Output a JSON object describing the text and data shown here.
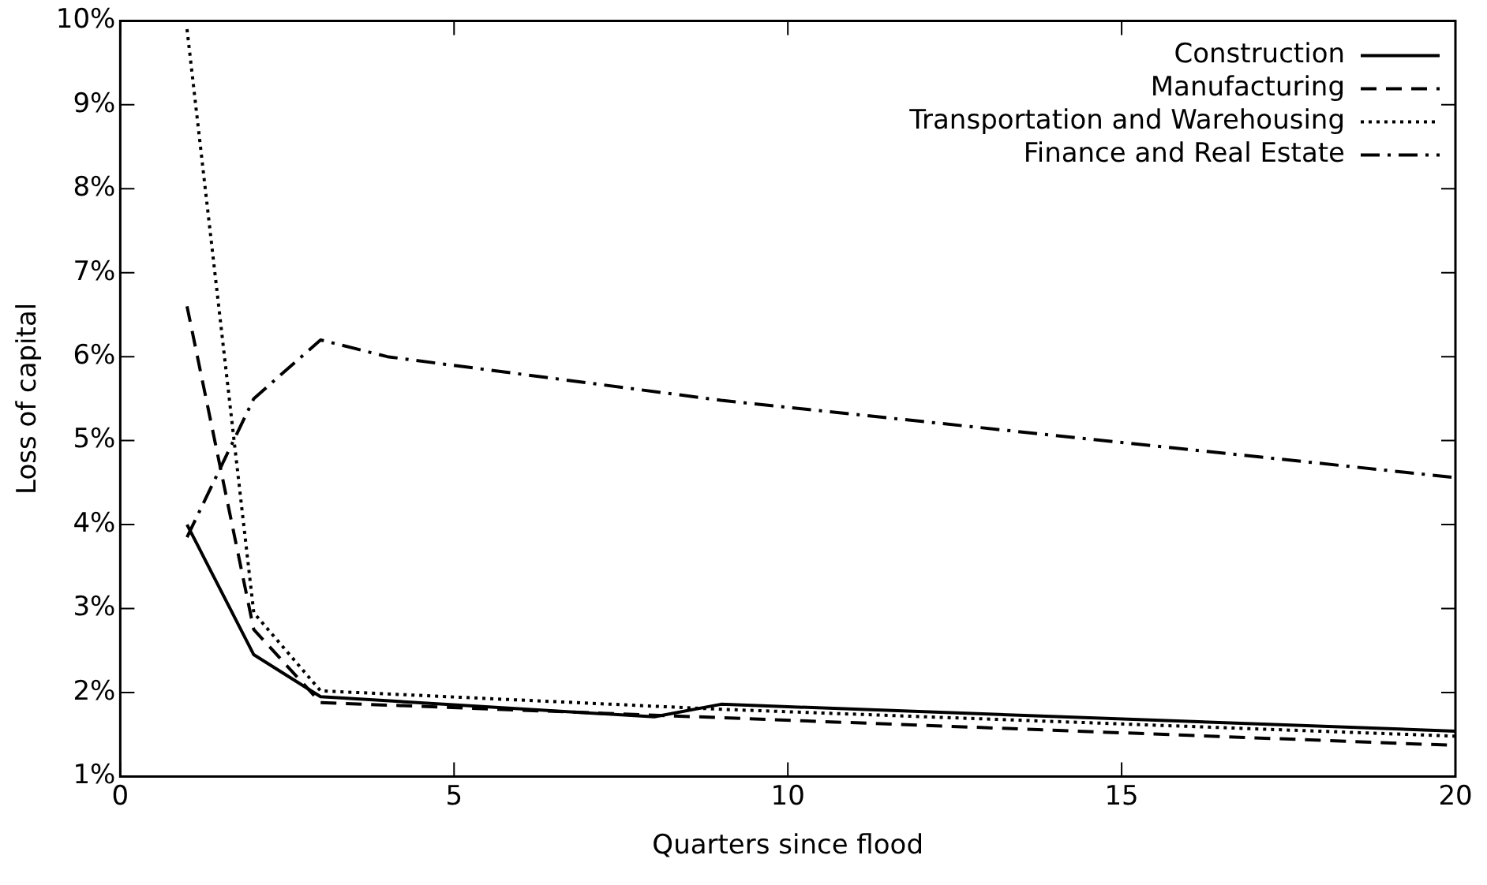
{
  "chart_data": {
    "type": "line",
    "xlabel": "Quarters since flood",
    "ylabel": "Loss of capital",
    "xlim": [
      0,
      20
    ],
    "xticks": [
      0,
      5,
      10,
      15,
      20
    ],
    "ylim": [
      1,
      10
    ],
    "yticks": [
      {
        "value": 1,
        "label": "1%"
      },
      {
        "value": 2,
        "label": "2%"
      },
      {
        "value": 3,
        "label": "3%"
      },
      {
        "value": 4,
        "label": "4%"
      },
      {
        "value": 5,
        "label": "5%"
      },
      {
        "value": 6,
        "label": "6%"
      },
      {
        "value": 7,
        "label": "7%"
      },
      {
        "value": 8,
        "label": "8%"
      },
      {
        "value": 9,
        "label": "9%"
      },
      {
        "value": 10,
        "label": "10%"
      }
    ],
    "grid": false,
    "legend": "top right",
    "marker": "none",
    "series": [
      {
        "name": "Construction",
        "color": "#000000",
        "line_style": "solid",
        "x": [
          1,
          2,
          3,
          8,
          9,
          20
        ],
        "values": [
          4.0,
          2.45,
          1.95,
          1.71,
          1.86,
          1.54
        ]
      },
      {
        "name": "Manufacturing",
        "color": "#000000",
        "line_style": "dashed",
        "x": [
          1,
          2,
          3,
          20
        ],
        "values": [
          6.6,
          2.75,
          1.88,
          1.37
        ]
      },
      {
        "name": "Transportation and Warehousing",
        "color": "#000000",
        "line_style": "dotted",
        "x": [
          1,
          2,
          3,
          9,
          20
        ],
        "values": [
          9.9,
          2.95,
          2.02,
          1.8,
          1.48
        ]
      },
      {
        "name": "Finance and Real Estate",
        "color": "#000000",
        "line_style": "dashdot",
        "x": [
          1,
          2,
          3,
          4,
          9,
          20
        ],
        "values": [
          3.85,
          5.5,
          6.2,
          6.0,
          5.48,
          4.56
        ]
      }
    ]
  }
}
